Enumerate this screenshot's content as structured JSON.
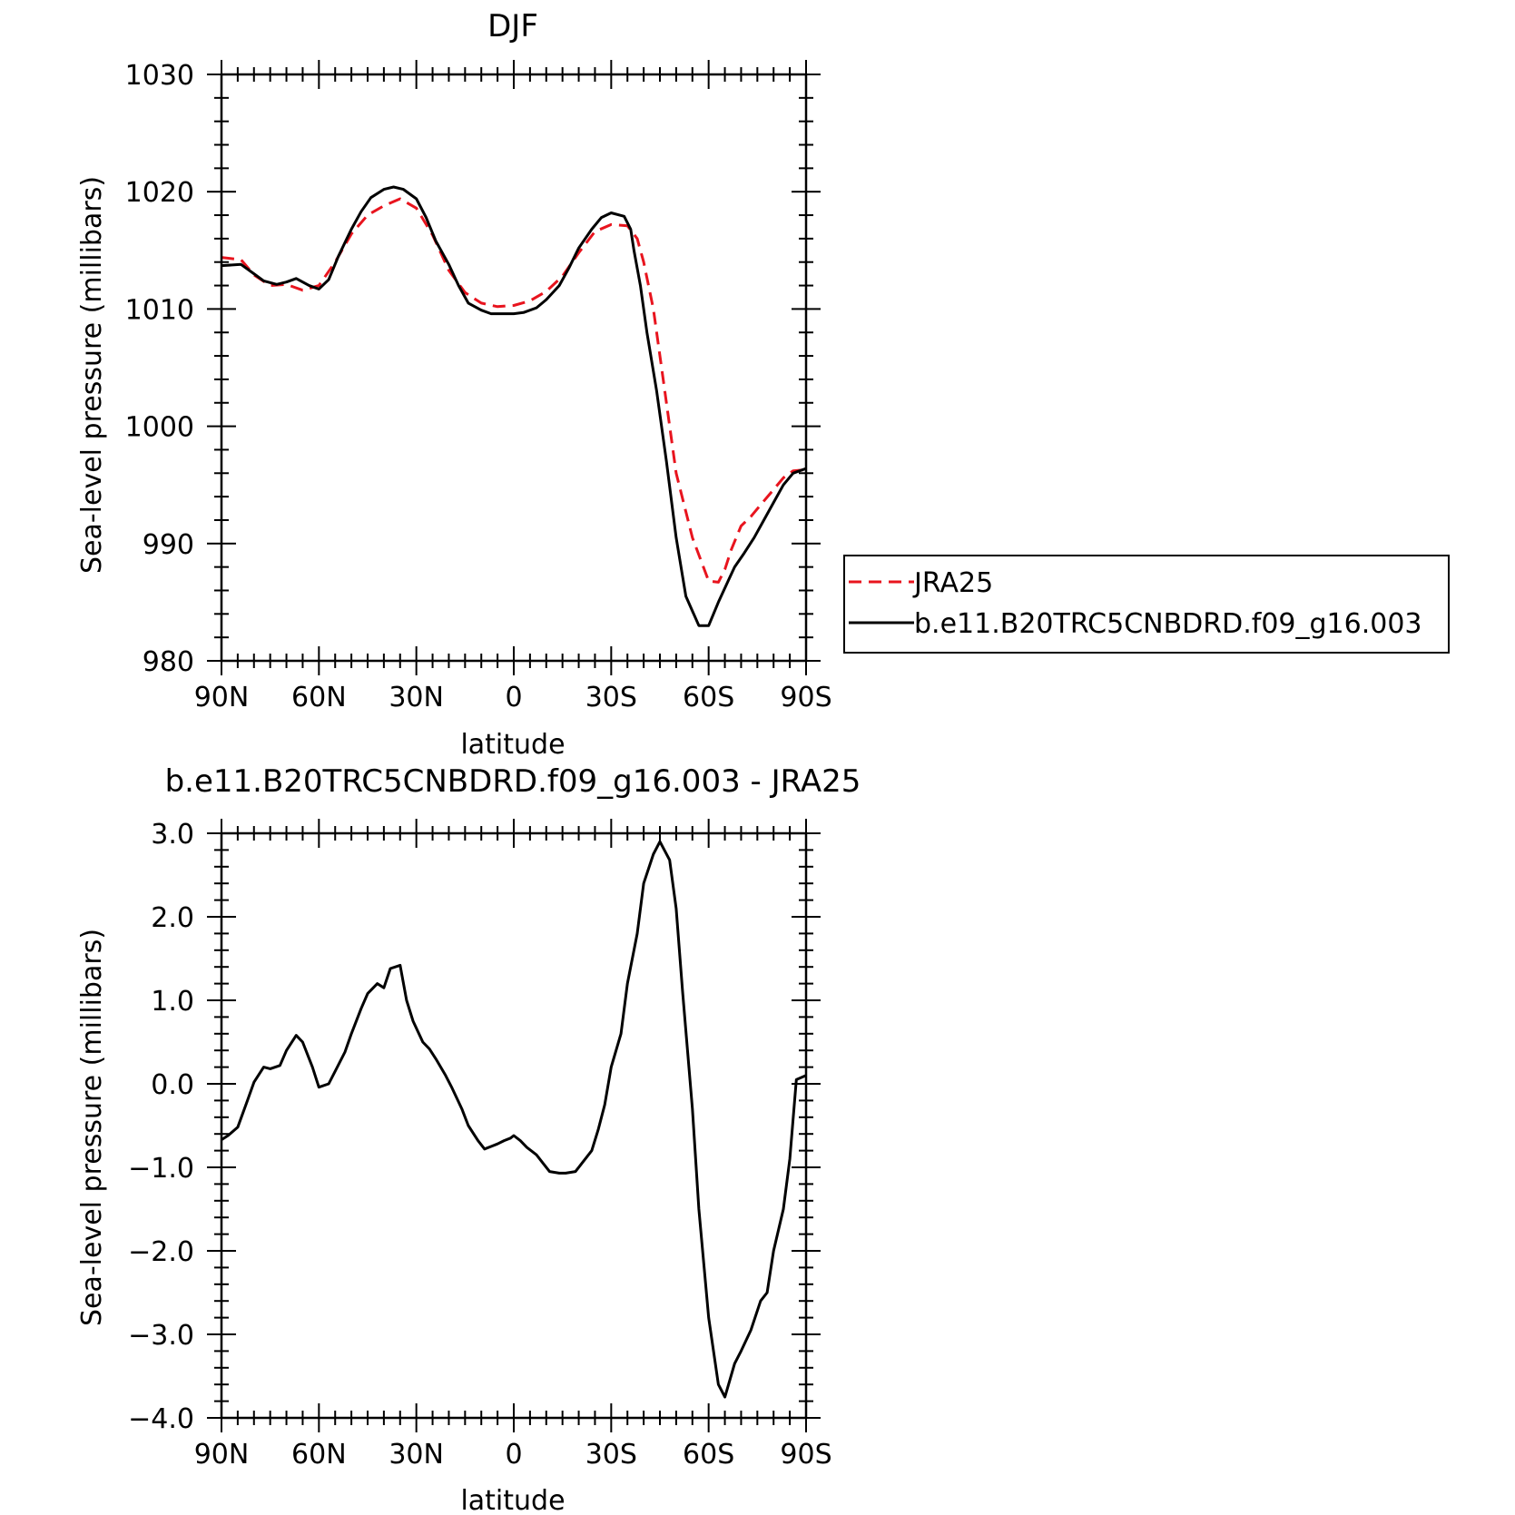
{
  "chart_data": [
    {
      "type": "line",
      "title": "DJF",
      "xlabel": "latitude",
      "ylabel": "Sea-level pressure (millibars)",
      "xlim": [
        90,
        -90
      ],
      "ylim": [
        980,
        1030
      ],
      "x_ticks": [
        {
          "value": 90,
          "label": "90N"
        },
        {
          "value": 60,
          "label": "60N"
        },
        {
          "value": 30,
          "label": "30N"
        },
        {
          "value": 0,
          "label": "0"
        },
        {
          "value": -30,
          "label": "30S"
        },
        {
          "value": -60,
          "label": "60S"
        },
        {
          "value": -90,
          "label": "90S"
        }
      ],
      "y_ticks": [
        {
          "value": 980,
          "label": "980"
        },
        {
          "value": 990,
          "label": "990"
        },
        {
          "value": 1000,
          "label": "1000"
        },
        {
          "value": 1010,
          "label": "1010"
        },
        {
          "value": 1020,
          "label": "1020"
        },
        {
          "value": 1030,
          "label": "1030"
        }
      ],
      "legend": {
        "placement": "right",
        "entries": [
          "JRA25",
          "b.e11.B20TRC5CNBDRD.f09_g16.003"
        ]
      },
      "series": [
        {
          "name": "JRA25",
          "color": "#e8141e",
          "style": "dashed",
          "x": [
            90,
            84,
            80,
            75,
            70,
            65,
            60,
            55,
            50,
            45,
            40,
            35,
            30,
            25,
            20,
            15,
            10,
            5,
            0,
            -5,
            -10,
            -15,
            -20,
            -25,
            -30,
            -35,
            -38,
            -40,
            -43,
            -46,
            -50,
            -55,
            -60,
            -63,
            -65,
            -67,
            -70,
            -73,
            -76,
            -80,
            -83,
            -86,
            -90
          ],
          "y": [
            1014.4,
            1014.2,
            1012.9,
            1012.0,
            1012.1,
            1011.6,
            1012.0,
            1014.0,
            1016.4,
            1018.0,
            1018.8,
            1019.4,
            1018.6,
            1016.3,
            1013.3,
            1011.4,
            1010.5,
            1010.2,
            1010.3,
            1010.7,
            1011.5,
            1012.8,
            1014.8,
            1016.6,
            1017.2,
            1017.1,
            1016.0,
            1014.0,
            1010.0,
            1004.0,
            996.0,
            990.5,
            986.8,
            986.7,
            987.8,
            989.5,
            991.5,
            992.3,
            993.3,
            994.6,
            995.6,
            996.2,
            996.3
          ]
        },
        {
          "name": "b.e11.B20TRC5CNBDRD.f09_g16.003",
          "color": "#000000",
          "style": "solid",
          "x": [
            90,
            84,
            80,
            77,
            73,
            70,
            67,
            63,
            60,
            57,
            54,
            50,
            47,
            44,
            40,
            37,
            34,
            30,
            27,
            24,
            20,
            17,
            14,
            10,
            7,
            4,
            0,
            -3,
            -7,
            -10,
            -14,
            -17,
            -20,
            -24,
            -27,
            -30,
            -34,
            -36,
            -37,
            -39,
            -41,
            -44,
            -47,
            -50,
            -53,
            -57,
            -60,
            -63,
            -66,
            -68,
            -71,
            -74,
            -77,
            -80,
            -83,
            -86,
            -90
          ],
          "y": [
            1013.7,
            1013.8,
            1013.0,
            1012.4,
            1012.1,
            1012.3,
            1012.6,
            1012.0,
            1011.7,
            1012.5,
            1014.5,
            1016.8,
            1018.3,
            1019.5,
            1020.2,
            1020.4,
            1020.2,
            1019.4,
            1017.8,
            1015.8,
            1013.8,
            1012.0,
            1010.5,
            1009.9,
            1009.6,
            1009.6,
            1009.6,
            1009.7,
            1010.1,
            1010.8,
            1012.0,
            1013.5,
            1015.2,
            1016.8,
            1017.8,
            1018.2,
            1017.9,
            1016.8,
            1015.0,
            1012.0,
            1008.0,
            1003.0,
            997.0,
            990.5,
            985.5,
            983.0,
            983.0,
            985.0,
            986.8,
            988.0,
            989.2,
            990.5,
            992.0,
            993.5,
            995.0,
            996.0,
            996.4
          ]
        }
      ]
    },
    {
      "type": "line",
      "title": "b.e11.B20TRC5CNBDRD.f09_g16.003 - JRA25",
      "xlabel": "latitude",
      "ylabel": "Sea-level pressure (millibars)",
      "xlim": [
        90,
        -90
      ],
      "ylim": [
        -4.0,
        3.0
      ],
      "x_ticks": [
        {
          "value": 90,
          "label": "90N"
        },
        {
          "value": 60,
          "label": "60N"
        },
        {
          "value": 30,
          "label": "30N"
        },
        {
          "value": 0,
          "label": "0"
        },
        {
          "value": -30,
          "label": "30S"
        },
        {
          "value": -60,
          "label": "60S"
        },
        {
          "value": -90,
          "label": "90S"
        }
      ],
      "y_ticks": [
        {
          "value": -4,
          "label": "−4.0"
        },
        {
          "value": -3,
          "label": "−3.0"
        },
        {
          "value": -2,
          "label": "−2.0"
        },
        {
          "value": -1,
          "label": "−1.0"
        },
        {
          "value": 0,
          "label": "0.0"
        },
        {
          "value": 1,
          "label": "1.0"
        },
        {
          "value": 2,
          "label": "2.0"
        },
        {
          "value": 3,
          "label": "3.0"
        }
      ],
      "series": [
        {
          "color": "#000000",
          "style": "solid",
          "x": [
            90,
            88,
            85,
            82,
            80,
            77,
            75,
            72,
            70,
            67,
            65,
            62,
            60,
            57,
            55,
            52,
            50,
            47,
            45,
            42,
            40,
            38,
            35,
            33,
            31,
            28,
            26,
            24,
            21,
            19,
            16,
            14,
            11,
            9,
            7,
            5,
            3,
            1,
            0,
            -2,
            -4,
            -7,
            -9,
            -11,
            -14,
            -16,
            -19,
            -21,
            -24,
            -26,
            -28,
            -30,
            -33,
            -35,
            -38,
            -40,
            -43,
            -45,
            -48,
            -50,
            -52,
            -55,
            -57,
            -60,
            -63,
            -65,
            -68,
            -70,
            -73,
            -76,
            -78,
            -80,
            -83,
            -85,
            -87,
            -90
          ],
          "y": [
            -0.67,
            -0.62,
            -0.52,
            -0.2,
            0.02,
            0.2,
            0.18,
            0.22,
            0.4,
            0.58,
            0.5,
            0.2,
            -0.04,
            0.0,
            0.15,
            0.38,
            0.6,
            0.9,
            1.08,
            1.2,
            1.15,
            1.38,
            1.42,
            1.0,
            0.75,
            0.5,
            0.42,
            0.3,
            0.1,
            -0.05,
            -0.3,
            -0.5,
            -0.68,
            -0.78,
            -0.75,
            -0.72,
            -0.68,
            -0.65,
            -0.62,
            -0.68,
            -0.76,
            -0.85,
            -0.95,
            -1.05,
            -1.07,
            -1.07,
            -1.05,
            -0.95,
            -0.8,
            -0.55,
            -0.25,
            0.2,
            0.6,
            1.2,
            1.8,
            2.4,
            2.75,
            2.9,
            2.68,
            2.1,
            1.1,
            -0.3,
            -1.5,
            -2.8,
            -3.6,
            -3.75,
            -3.35,
            -3.2,
            -2.95,
            -2.6,
            -2.5,
            -2.0,
            -1.5,
            -0.9,
            0.05,
            0.1
          ]
        }
      ]
    }
  ]
}
